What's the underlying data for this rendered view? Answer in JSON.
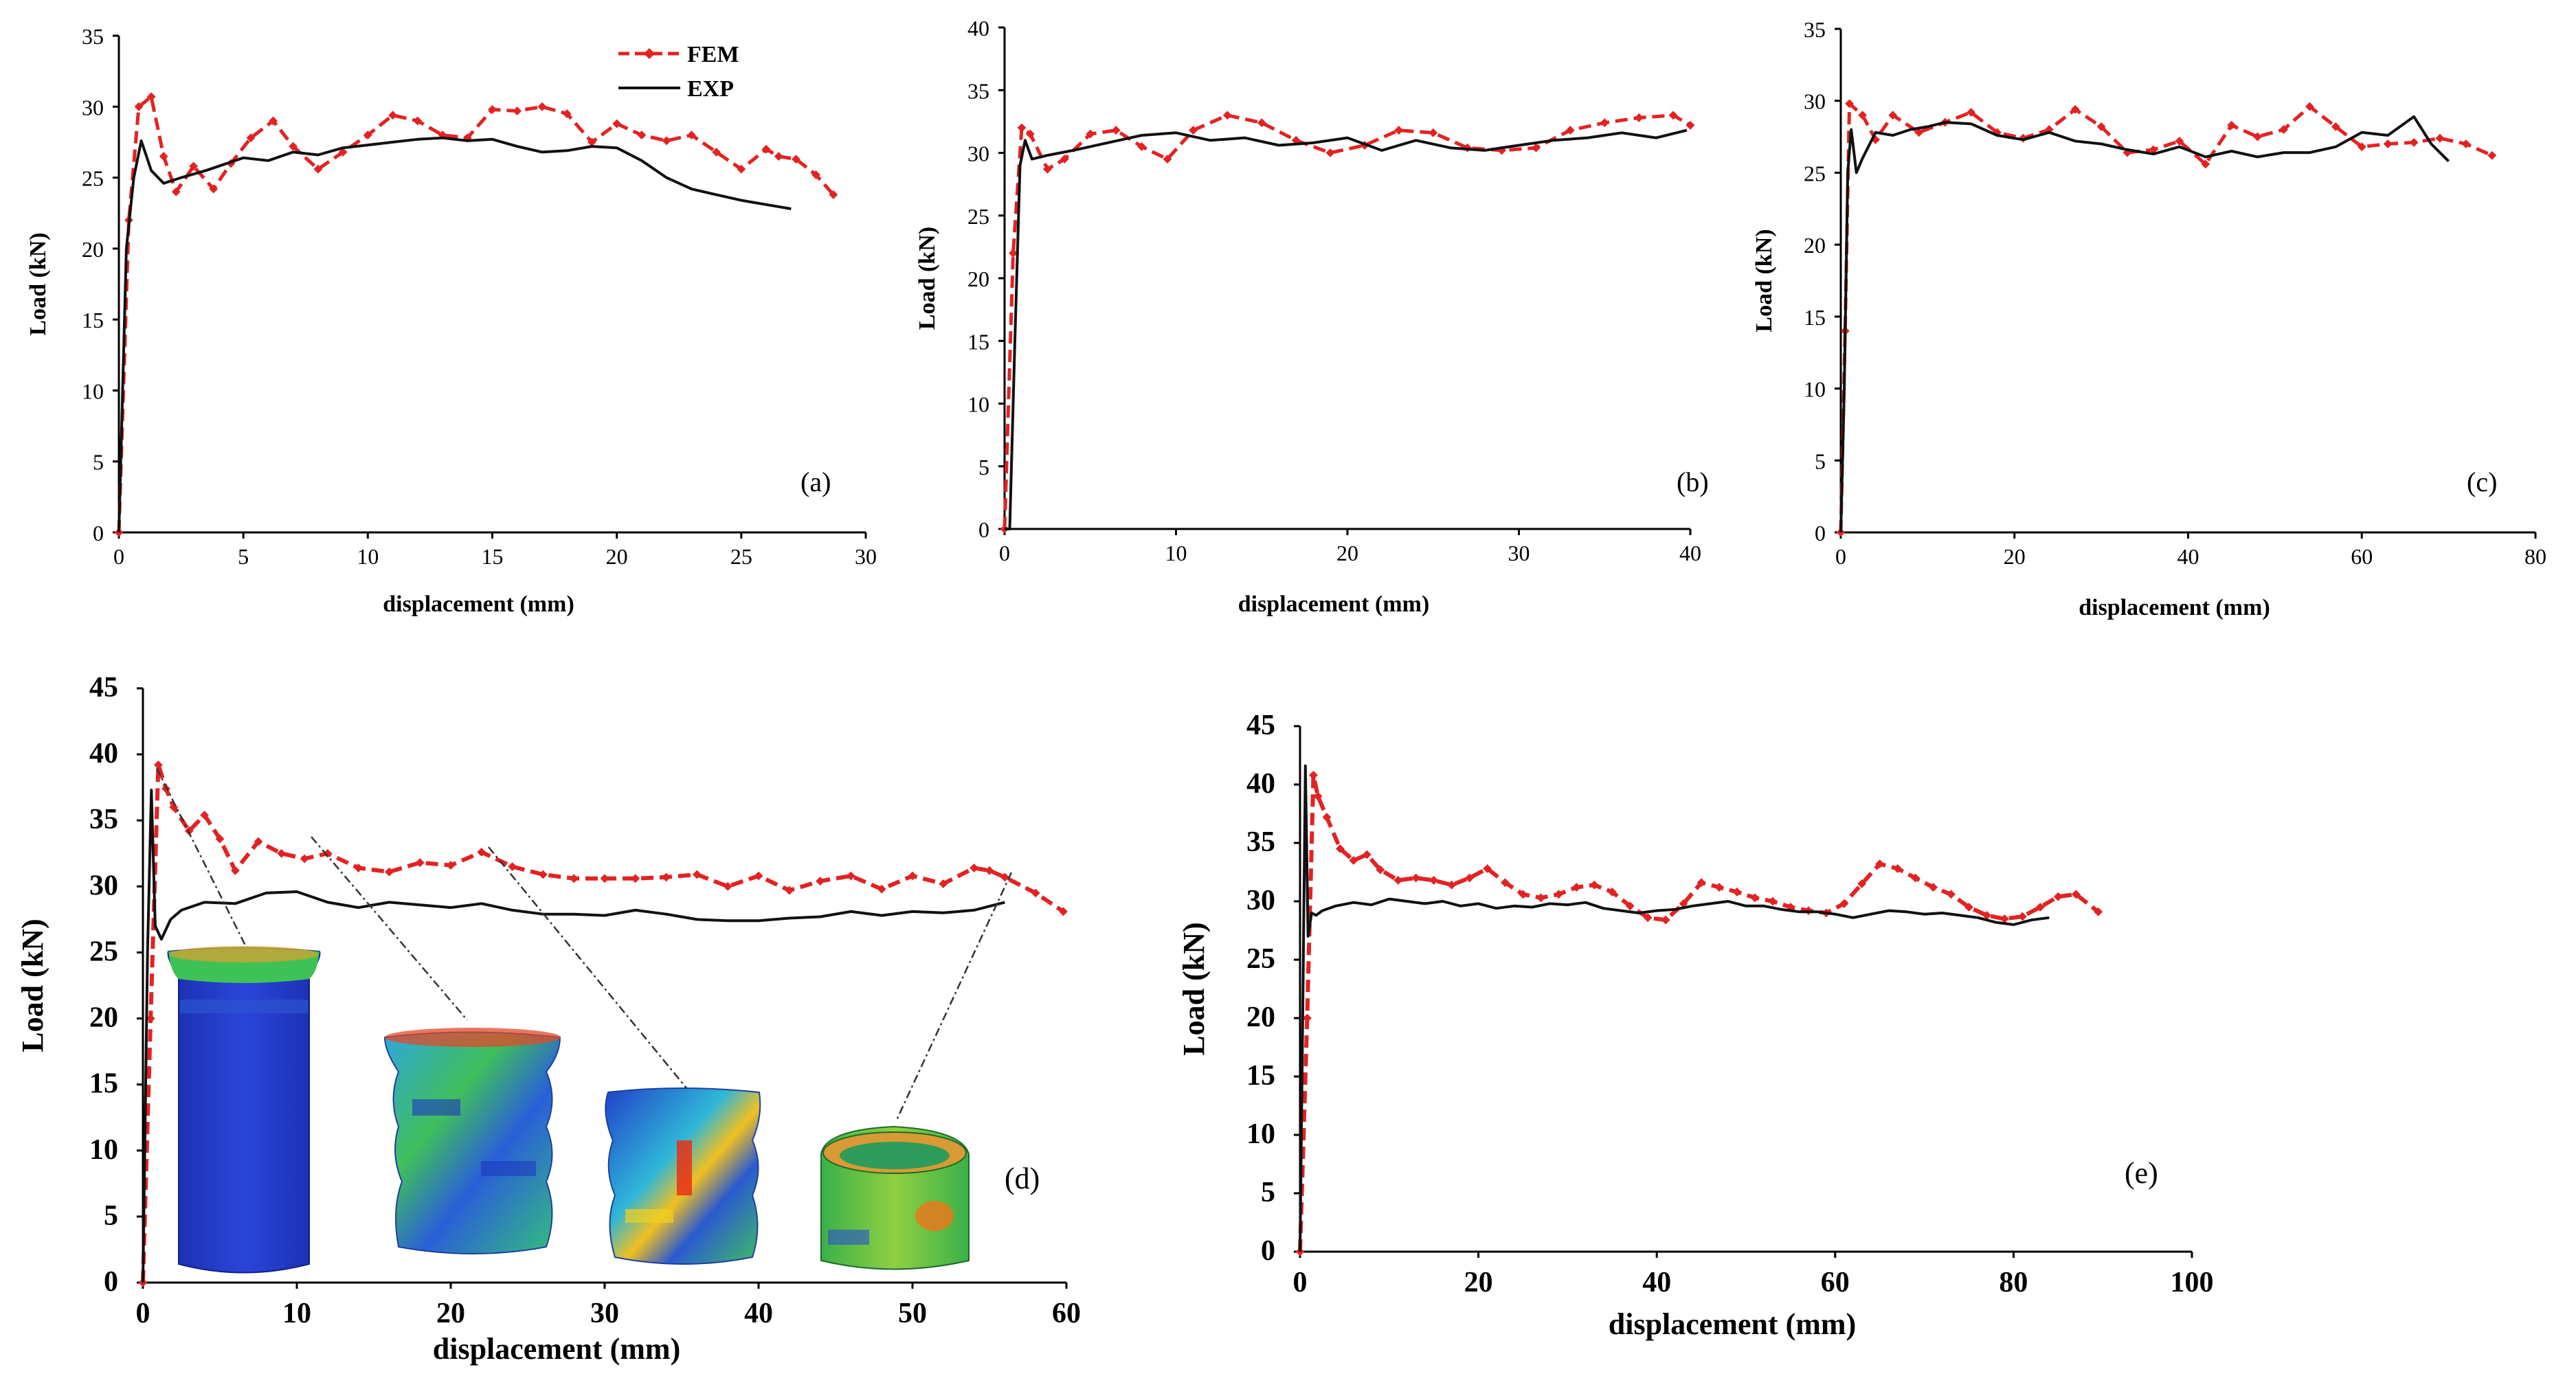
{
  "colors": {
    "fem": "#e32222",
    "exp": "#111111",
    "axis": "#000000"
  },
  "legend": [
    {
      "name": "FEM",
      "style": "dashed-diamond"
    },
    {
      "name": "EXP",
      "style": "solid"
    }
  ],
  "chart_data": [
    {
      "id": "a",
      "type": "line",
      "tag": "(a)",
      "xlabel": "displacement (mm)",
      "ylabel": "Load (kN)",
      "xlim": [
        0,
        30
      ],
      "ylim": [
        0,
        35
      ],
      "xticks": [
        0,
        5,
        10,
        15,
        20,
        25,
        30
      ],
      "yticks": [
        0,
        5,
        10,
        15,
        20,
        25,
        30,
        35
      ],
      "series": [
        {
          "name": "FEM",
          "x": [
            0,
            0.4,
            0.8,
            1.3,
            1.8,
            2.3,
            3,
            3.8,
            4.5,
            5.3,
            6.2,
            7,
            8,
            9,
            10,
            11,
            12,
            13,
            14,
            15,
            16,
            17,
            18,
            19,
            20,
            21,
            22,
            23,
            24,
            25,
            26,
            26.5,
            27.2,
            28,
            28.7
          ],
          "y": [
            0,
            22,
            30,
            30.7,
            26.5,
            24,
            25.8,
            24.2,
            26,
            27.8,
            29,
            27.2,
            25.6,
            26.8,
            28,
            29.4,
            29,
            28,
            27.8,
            29.8,
            29.7,
            30,
            29.5,
            27.5,
            28.8,
            28,
            27.6,
            28,
            26.8,
            25.6,
            27,
            26.5,
            26.3,
            25.2,
            23.8
          ]
        },
        {
          "name": "EXP",
          "x": [
            0,
            0.3,
            0.6,
            0.9,
            1.3,
            1.8,
            2.5,
            3.5,
            5,
            6,
            7,
            8,
            9,
            10,
            11,
            12,
            13,
            14,
            15,
            16,
            17,
            18,
            19,
            20,
            21,
            22,
            23,
            24,
            25,
            26,
            27
          ],
          "y": [
            0,
            20,
            25,
            27.6,
            25.5,
            24.6,
            25,
            25.5,
            26.4,
            26.2,
            26.8,
            26.6,
            27.1,
            27.3,
            27.5,
            27.7,
            27.8,
            27.6,
            27.7,
            27.2,
            26.8,
            26.9,
            27.2,
            27.1,
            26.2,
            25,
            24.2,
            23.8,
            23.4,
            23.1,
            22.8
          ]
        }
      ]
    },
    {
      "id": "b",
      "type": "line",
      "tag": "(b)",
      "xlabel": "displacement (mm)",
      "ylabel": "Load (kN)",
      "xlim": [
        0,
        40
      ],
      "ylim": [
        0,
        40
      ],
      "xticks": [
        0,
        10,
        20,
        30,
        40
      ],
      "yticks": [
        0,
        5,
        10,
        15,
        20,
        25,
        30,
        35,
        40
      ],
      "series": [
        {
          "name": "FEM",
          "x": [
            0,
            0.5,
            1,
            1.5,
            2.5,
            3.5,
            5,
            6.5,
            8,
            9.5,
            11,
            13,
            15,
            17,
            19,
            21,
            23,
            25,
            27,
            29,
            31,
            33,
            35,
            37,
            39,
            40
          ],
          "y": [
            0,
            22,
            32,
            31.5,
            28.7,
            29.5,
            31.5,
            31.8,
            30.5,
            29.5,
            31.8,
            33,
            32.4,
            31,
            30,
            30.6,
            31.8,
            31.6,
            30.4,
            30.2,
            30.4,
            31.8,
            32.4,
            32.8,
            33,
            32.2
          ]
        },
        {
          "name": "EXP",
          "x": [
            0,
            0.3,
            0.6,
            0.9,
            1.2,
            1.6,
            2.5,
            4,
            6,
            8,
            10,
            12,
            14,
            16,
            18,
            20,
            22,
            24,
            26,
            28,
            30,
            32,
            34,
            36,
            38,
            39.8
          ],
          "y": [
            0,
            0,
            15,
            29,
            31,
            29.5,
            29.8,
            30.2,
            30.8,
            31.4,
            31.6,
            31,
            31.2,
            30.6,
            30.8,
            31.2,
            30.2,
            31,
            30.4,
            30.2,
            30.6,
            31,
            31.2,
            31.6,
            31.2,
            31.8
          ]
        }
      ]
    },
    {
      "id": "c",
      "type": "line",
      "tag": "(c)",
      "xlabel": "displacement (mm)",
      "ylabel": "Load (kN)",
      "xlim": [
        0,
        80
      ],
      "ylim": [
        0,
        35
      ],
      "xticks": [
        0,
        20,
        40,
        60,
        80
      ],
      "yticks": [
        0,
        5,
        10,
        15,
        20,
        25,
        30,
        35
      ],
      "series": [
        {
          "name": "FEM",
          "x": [
            0,
            0.5,
            1,
            2.5,
            4,
            6,
            9,
            12,
            15,
            18,
            21,
            24,
            27,
            30,
            33,
            36,
            39,
            42,
            45,
            48,
            51,
            54,
            57,
            60,
            63,
            66,
            69,
            72,
            75
          ],
          "y": [
            0,
            14,
            29.8,
            29,
            27.3,
            29,
            27.8,
            28.5,
            29.2,
            27.8,
            27.4,
            28,
            29.4,
            28.2,
            26.4,
            26.6,
            27.2,
            25.6,
            28.3,
            27.5,
            28,
            29.6,
            28.2,
            26.8,
            27,
            27.1,
            27.4,
            27,
            26.2
          ]
        },
        {
          "name": "EXP",
          "x": [
            0,
            0.4,
            0.8,
            1.2,
            1.8,
            2.5,
            4,
            6,
            8,
            10,
            12,
            15,
            18,
            21,
            24,
            27,
            30,
            33,
            36,
            39,
            42,
            45,
            48,
            51,
            54,
            57,
            60,
            63,
            66,
            68,
            70
          ],
          "y": [
            0,
            10,
            25,
            28,
            25,
            26,
            27.8,
            27.6,
            28,
            28.2,
            28.5,
            28.4,
            27.6,
            27.3,
            27.8,
            27.2,
            27,
            26.6,
            26.3,
            26.8,
            26.1,
            26.5,
            26.1,
            26.4,
            26.4,
            26.8,
            27.8,
            27.6,
            28.9,
            27,
            25.8
          ]
        }
      ]
    },
    {
      "id": "d",
      "type": "line",
      "tag": "(d)",
      "xlabel": "displacement (mm)",
      "ylabel": "Load (kN)",
      "xlim": [
        0,
        60
      ],
      "ylim": [
        0,
        45
      ],
      "xticks": [
        0,
        10,
        20,
        30,
        40,
        50,
        60
      ],
      "yticks": [
        0,
        5,
        10,
        15,
        20,
        25,
        30,
        35,
        40,
        45
      ],
      "series": [
        {
          "name": "FEM",
          "x": [
            0,
            0.5,
            1,
            1.5,
            2,
            3,
            4,
            5,
            6,
            7.5,
            9,
            10.5,
            12,
            14,
            16,
            18,
            20,
            22,
            24,
            26,
            28,
            30,
            32,
            34,
            36,
            38,
            40,
            42,
            44,
            46,
            48,
            50,
            52,
            54,
            55,
            56,
            58,
            59.8
          ],
          "y": [
            0,
            20,
            39.2,
            37.4,
            36,
            34.2,
            35.4,
            33.6,
            31.2,
            33.4,
            32.5,
            32.1,
            32.5,
            31.4,
            31.1,
            31.8,
            31.6,
            32.6,
            31.5,
            30.9,
            30.6,
            30.6,
            30.6,
            30.7,
            30.9,
            30,
            30.8,
            29.7,
            30.4,
            30.8,
            29.8,
            30.8,
            30.2,
            31.4,
            31.2,
            30.7,
            29.5,
            28.1
          ]
        },
        {
          "name": "EXP",
          "x": [
            0,
            0.3,
            0.55,
            0.8,
            1.2,
            1.8,
            2.5,
            4,
            6,
            8,
            10,
            12,
            14,
            16,
            18,
            20,
            22,
            24,
            26,
            28,
            30,
            32,
            34,
            36,
            38,
            40,
            42,
            44,
            46,
            48,
            50,
            52,
            54,
            56
          ],
          "y": [
            0,
            25,
            37.3,
            27,
            26,
            27.5,
            28.2,
            28.8,
            28.7,
            29.5,
            29.6,
            28.8,
            28.4,
            28.8,
            28.6,
            28.4,
            28.7,
            28.2,
            27.9,
            27.9,
            27.8,
            28.2,
            27.9,
            27.5,
            27.4,
            27.4,
            27.6,
            27.7,
            28.1,
            27.8,
            28.1,
            28,
            28.2,
            28.8
          ]
        }
      ]
    },
    {
      "id": "e",
      "type": "line",
      "tag": "(e)",
      "xlabel": "displacement (mm)",
      "ylabel": "Load (kN)",
      "xlim": [
        0,
        100
      ],
      "ylim": [
        0,
        45
      ],
      "xticks": [
        0,
        20,
        40,
        60,
        80,
        100
      ],
      "yticks": [
        0,
        5,
        10,
        15,
        20,
        25,
        30,
        35,
        40,
        45
      ],
      "series": [
        {
          "name": "FEM",
          "x": [
            0,
            0.8,
            1.5,
            2,
            3,
            4.5,
            6,
            7.5,
            9,
            11,
            13,
            15,
            17,
            19,
            21,
            23,
            25,
            27,
            29,
            31,
            33,
            35,
            37,
            39,
            41,
            43,
            45,
            47,
            49,
            51,
            53,
            55,
            57,
            59,
            61,
            63,
            65,
            67,
            69,
            71,
            73,
            75,
            77,
            79,
            81,
            83,
            85,
            87,
            89.5
          ],
          "y": [
            0,
            20,
            40.8,
            39,
            37.2,
            34.5,
            33.5,
            34,
            32.7,
            31.8,
            32,
            31.8,
            31.4,
            32,
            32.8,
            31.6,
            30.6,
            30.3,
            30.6,
            31.2,
            31.4,
            30.8,
            29.6,
            28.6,
            28.4,
            29.8,
            31.6,
            31.2,
            30.8,
            30.3,
            30,
            29.5,
            29.2,
            29,
            29.8,
            31.5,
            33.2,
            32.8,
            32,
            31.2,
            30.6,
            29.5,
            28.8,
            28.5,
            28.7,
            29.5,
            30.4,
            30.6,
            29.1
          ]
        },
        {
          "name": "EXP",
          "x": [
            0,
            0.3,
            0.6,
            0.9,
            1.3,
            1.8,
            2.5,
            4,
            6,
            8,
            10,
            12,
            14,
            16,
            18,
            20,
            22,
            24,
            26,
            28,
            30,
            32,
            34,
            36,
            38,
            40,
            42,
            44,
            46,
            48,
            50,
            52,
            54,
            56,
            58,
            60,
            62,
            64,
            66,
            68,
            70,
            72,
            74,
            76,
            78,
            80,
            82,
            84
          ],
          "y": [
            0,
            20,
            41.6,
            27,
            29,
            28.8,
            29.2,
            29.6,
            29.9,
            29.7,
            30.2,
            30,
            29.8,
            30,
            29.6,
            29.8,
            29.4,
            29.6,
            29.5,
            29.8,
            29.7,
            29.9,
            29.4,
            29.2,
            29,
            29.2,
            29.3,
            29.6,
            29.8,
            30,
            29.6,
            29.6,
            29.3,
            29.1,
            29.1,
            28.9,
            28.6,
            28.9,
            29.2,
            29.1,
            28.9,
            29,
            28.8,
            28.6,
            28.2,
            28,
            28.4,
            28.6
          ]
        }
      ]
    }
  ]
}
